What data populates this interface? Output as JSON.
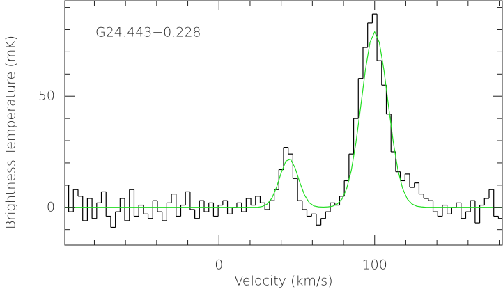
{
  "chart_data": {
    "type": "line",
    "annotation": "G24.443−0.228",
    "x_label": "Velocity (km/s)",
    "y_label": "Brightness Temperature (mK)",
    "xlim": [
      -99,
      182
    ],
    "ylim": [
      -17,
      93
    ],
    "xticks": [
      0,
      100
    ],
    "yticks": [
      0,
      50
    ],
    "xminorticks": [
      -80,
      -60,
      -40,
      -20,
      20,
      40,
      60,
      80,
      120,
      140,
      160,
      180
    ],
    "yminorticks": [
      -10,
      10,
      20,
      30,
      40,
      60,
      70,
      80,
      90
    ],
    "series": [
      {
        "color": "#000000",
        "drawstyle": "steps-mid",
        "x": [
          -98,
          -95,
          -92,
          -89,
          -86,
          -83,
          -80,
          -77,
          -74,
          -71,
          -68,
          -65,
          -62,
          -59,
          -56,
          -53,
          -50,
          -47,
          -44,
          -41,
          -38,
          -35,
          -32,
          -29,
          -26,
          -23,
          -20,
          -17,
          -14,
          -11,
          -8,
          -5,
          -2,
          1,
          4,
          7,
          10,
          13,
          16,
          19,
          22,
          25,
          28,
          31,
          34,
          37,
          40,
          43,
          46,
          49,
          52,
          55,
          58,
          61,
          64,
          67,
          70,
          73,
          76,
          79,
          82,
          85,
          88,
          91,
          94,
          97,
          100,
          103,
          106,
          109,
          112,
          115,
          118,
          121,
          124,
          127,
          130,
          133,
          136,
          139,
          142,
          145,
          148,
          151,
          154,
          157,
          160,
          163,
          166,
          169,
          172,
          175,
          178,
          181
        ],
        "values": [
          10,
          -2,
          8,
          5,
          -6,
          4,
          -5,
          2,
          7,
          -4,
          -9,
          -2,
          4,
          -6,
          8,
          -4,
          1,
          -3,
          -5,
          3,
          -2,
          -6,
          2,
          6,
          -4,
          1,
          7,
          -1,
          -5,
          3,
          -2,
          2,
          -4,
          1,
          3,
          -3,
          0,
          2,
          -2,
          4,
          1,
          5,
          2,
          -1,
          3,
          8,
          17,
          27,
          24,
          13,
          3,
          -1,
          -4,
          -3,
          -8,
          -5,
          -2,
          2,
          1,
          5,
          12,
          24,
          40,
          58,
          72,
          83,
          87,
          66,
          55,
          42,
          25,
          16,
          12,
          15,
          9,
          11,
          6,
          4,
          3,
          -2,
          -4,
          1,
          -3,
          0,
          2,
          -5,
          -2,
          3,
          -7,
          1,
          4,
          8,
          -4,
          -5
        ]
      },
      {
        "color": "#22dd22",
        "drawstyle": "line",
        "x": [
          -99,
          25,
          28,
          31,
          34,
          37,
          40,
          43,
          46,
          49,
          52,
          55,
          58,
          61,
          64,
          67,
          70,
          73,
          76,
          79,
          82,
          85,
          88,
          91,
          94,
          97,
          100,
          103,
          106,
          109,
          112,
          115,
          118,
          121,
          124,
          127,
          130,
          133,
          182
        ],
        "values": [
          0,
          0,
          0.4,
          1.5,
          4.1,
          9.0,
          15.6,
          20.8,
          21.7,
          17.6,
          11.1,
          5.5,
          2.1,
          0.6,
          0.2,
          0.1,
          0.2,
          0.5,
          1.5,
          3.7,
          8.4,
          16.6,
          29.2,
          45.1,
          61.6,
          74.2,
          79,
          74.2,
          61.6,
          45.1,
          29.2,
          16.6,
          8.4,
          3.7,
          1.5,
          0.5,
          0.2,
          0,
          0
        ]
      }
    ]
  }
}
